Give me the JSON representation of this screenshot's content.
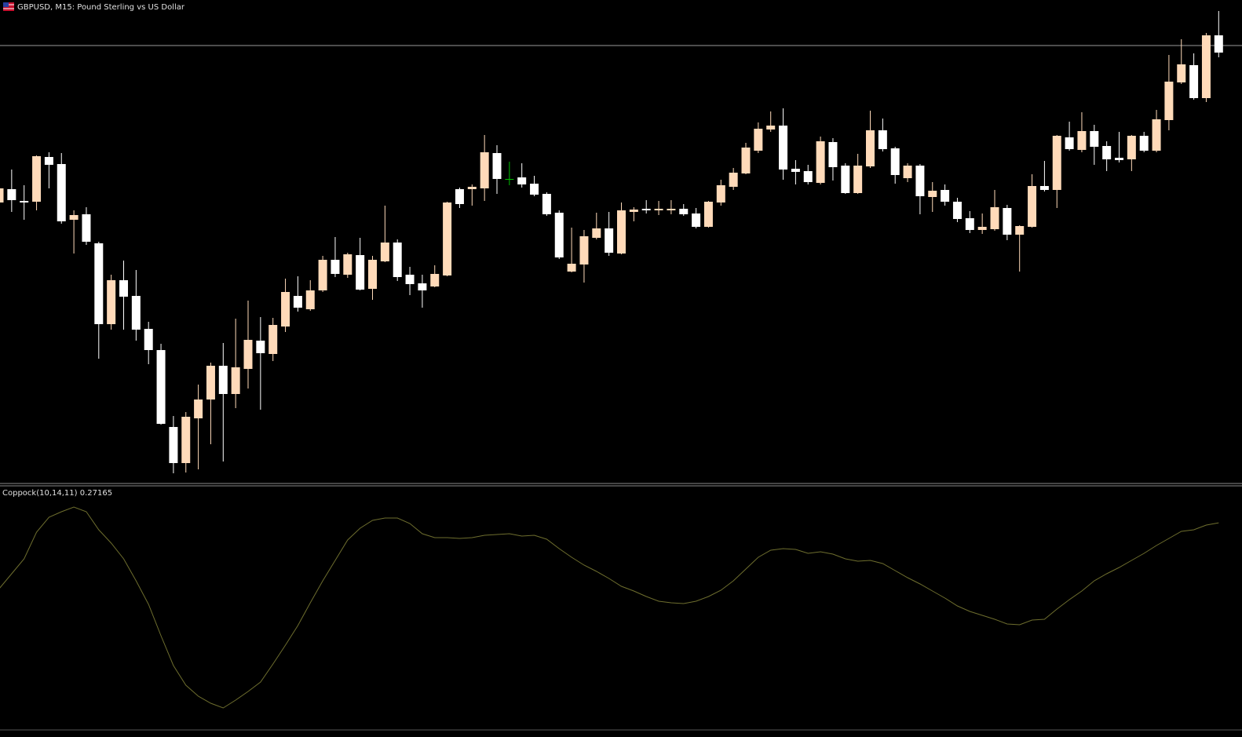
{
  "chart_data": [
    {
      "type": "candlestick",
      "title": "GBPUSD, M15:  Pound Sterling vs US Dollar",
      "open": [
        362,
        379,
        364,
        363,
        420,
        411,
        340,
        347,
        310,
        207,
        263,
        243,
        201,
        174,
        76,
        30,
        87,
        111,
        154,
        118,
        150,
        186,
        169,
        204,
        243,
        226,
        250,
        289,
        270,
        295,
        252,
        287,
        311,
        270,
        259,
        255,
        269,
        379,
        379,
        380,
        425,
        392,
        394,
        386,
        373,
        349,
        274,
        283,
        317,
        329,
        297,
        350,
        354,
        352,
        352,
        354,
        348,
        331,
        362,
        382,
        399,
        428,
        455,
        460,
        405,
        402,
        387,
        439,
        409,
        374,
        408,
        454,
        431,
        393,
        409,
        369,
        378,
        363,
        342,
        327,
        328,
        355,
        321,
        331,
        383,
        378,
        445,
        429,
        453,
        434,
        419,
        417,
        447,
        428,
        467,
        515,
        537,
        495,
        575
      ],
      "high": [
        388,
        404,
        384,
        422,
        426,
        425,
        352,
        356,
        312,
        270,
        288,
        276,
        210,
        182,
        90,
        95,
        130,
        158,
        183,
        214,
        237,
        216,
        215,
        265,
        268,
        263,
        294,
        318,
        298,
        317,
        294,
        358,
        315,
        280,
        270,
        282,
        363,
        381,
        385,
        448,
        435,
        414,
        412,
        396,
        375,
        352,
        330,
        327,
        349,
        350,
        362,
        356,
        365,
        364,
        365,
        360,
        355,
        364,
        391,
        406,
        438,
        464,
        478,
        482,
        416,
        410,
        446,
        444,
        412,
        424,
        479,
        469,
        433,
        412,
        411,
        388,
        385,
        368,
        351,
        348,
        378,
        359,
        333,
        398,
        415,
        448,
        465,
        477,
        461,
        440,
        452,
        448,
        452,
        480,
        550,
        570,
        552,
        578,
        606
      ],
      "low": [
        358,
        350,
        340,
        352,
        380,
        335,
        297,
        308,
        163,
        200,
        200,
        186,
        156,
        79,
        17,
        18,
        22,
        54,
        32,
        100,
        125,
        98,
        160,
        197,
        223,
        224,
        248,
        267,
        266,
        250,
        238,
        286,
        262,
        244,
        228,
        254,
        268,
        355,
        358,
        364,
        373,
        384,
        381,
        370,
        345,
        290,
        273,
        260,
        315,
        294,
        296,
        338,
        348,
        346,
        347,
        345,
        329,
        330,
        358,
        378,
        398,
        425,
        452,
        391,
        385,
        385,
        385,
        390,
        373,
        373,
        406,
        427,
        386,
        388,
        347,
        350,
        358,
        337,
        323,
        322,
        326,
        314,
        274,
        330,
        376,
        355,
        428,
        426,
        410,
        402,
        413,
        402,
        426,
        426,
        454,
        513,
        493,
        490,
        547
      ],
      "close": [
        380,
        365,
        362,
        421,
        410,
        338,
        346,
        312,
        207,
        263,
        242,
        200,
        174,
        80,
        30,
        89,
        111,
        154,
        118,
        152,
        187,
        170,
        206,
        248,
        228,
        250,
        289,
        271,
        296,
        251,
        289,
        311,
        267,
        258,
        250,
        271,
        362,
        360,
        382,
        426,
        392,
        392,
        385,
        372,
        347,
        292,
        284,
        319,
        329,
        298,
        352,
        353,
        352,
        354,
        354,
        347,
        331,
        363,
        384,
        400,
        432,
        456,
        460,
        404,
        401,
        388,
        440,
        407,
        374,
        409,
        454,
        430,
        397,
        409,
        370,
        377,
        363,
        341,
        327,
        331,
        356,
        321,
        332,
        383,
        378,
        447,
        430,
        453,
        433,
        417,
        416,
        447,
        428,
        468,
        516,
        538,
        495,
        575,
        553
      ],
      "up_color": "#ffdab9",
      "down_color": "#ffffff",
      "doji_color": "#00c000",
      "hline": 562,
      "hline_color": "#9a9a9a",
      "ylim": [
        0,
        620
      ]
    },
    {
      "type": "line",
      "title": "Coppock(10,14,11) 0.27165",
      "values": [
        -0.064,
        0.012,
        0.088,
        0.224,
        0.3,
        0.328,
        0.352,
        0.328,
        0.236,
        0.168,
        0.088,
        -0.024,
        -0.144,
        -0.304,
        -0.456,
        -0.556,
        -0.612,
        -0.648,
        -0.672,
        -0.632,
        -0.588,
        -0.54,
        -0.448,
        -0.352,
        -0.252,
        -0.136,
        -0.024,
        0.08,
        0.184,
        0.244,
        0.284,
        0.296,
        0.296,
        0.268,
        0.216,
        0.196,
        0.196,
        0.192,
        0.196,
        0.208,
        0.212,
        0.216,
        0.204,
        0.208,
        0.188,
        0.14,
        0.096,
        0.056,
        0.024,
        -0.012,
        -0.052,
        -0.076,
        -0.104,
        -0.128,
        -0.136,
        -0.14,
        -0.128,
        -0.104,
        -0.072,
        -0.024,
        0.036,
        0.096,
        0.132,
        0.14,
        0.136,
        0.116,
        0.124,
        0.112,
        0.088,
        0.076,
        0.08,
        0.064,
        0.028,
        -0.008,
        -0.04,
        -0.076,
        -0.112,
        -0.152,
        -0.18,
        -0.2,
        -0.22,
        -0.244,
        -0.248,
        -0.224,
        -0.22,
        -0.168,
        -0.12,
        -0.076,
        -0.024,
        0.012,
        0.044,
        0.08,
        0.116,
        0.156,
        0.192,
        0.228,
        0.236,
        0.26,
        0.27165
      ],
      "color": "#6e6e2e",
      "ylim": [
        -0.784,
        0.456
      ]
    }
  ]
}
